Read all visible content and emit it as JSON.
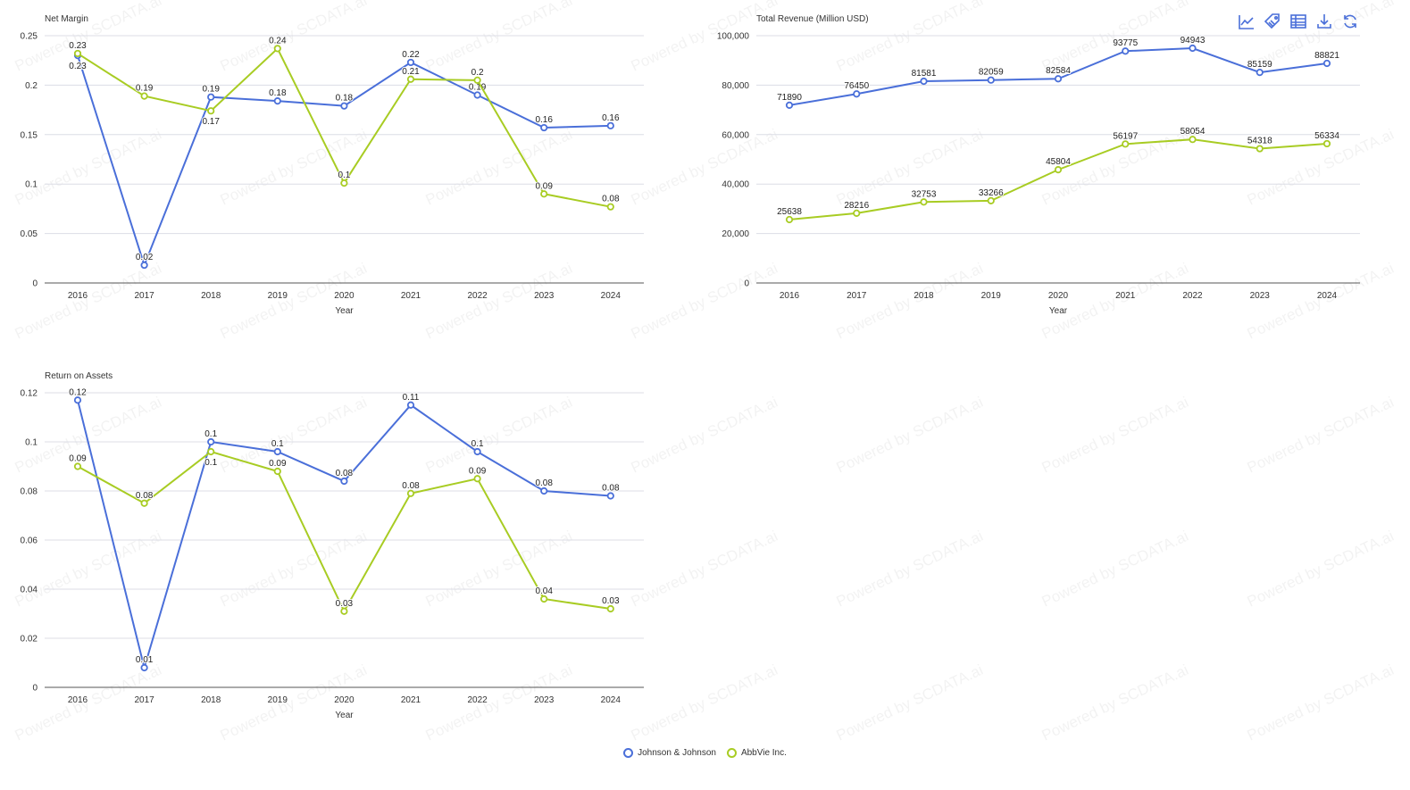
{
  "watermark": "Powered by SCDATA.ai",
  "toolbar": [
    "line-chart-icon",
    "tag-icon",
    "table-icon",
    "download-icon",
    "refresh-icon"
  ],
  "legend": [
    {
      "name": "Johnson & Johnson",
      "color": "#4a6fd9"
    },
    {
      "name": "AbbVie Inc.",
      "color": "#a8cc23"
    }
  ],
  "chart_data": [
    {
      "type": "line",
      "title": "Net Margin",
      "xlabel": "Year",
      "ylabel": "",
      "categories": [
        "2016",
        "2017",
        "2018",
        "2019",
        "2020",
        "2021",
        "2022",
        "2023",
        "2024"
      ],
      "ylim": [
        0,
        0.25
      ],
      "yticks": [
        0,
        0.05,
        0.1,
        0.15,
        0.2,
        0.25
      ],
      "ytick_labels": [
        "0",
        "0.05",
        "0.1",
        "0.15",
        "0.2",
        "0.25"
      ],
      "grid": true,
      "series": [
        {
          "name": "Johnson & Johnson",
          "color": "#4a6fd9",
          "values": [
            0.23,
            0.018,
            0.188,
            0.184,
            0.179,
            0.223,
            0.19,
            0.157,
            0.159
          ],
          "labels": [
            "0.23",
            "0.02",
            "0.19",
            "0.18",
            "0.18",
            "0.22",
            "0.19",
            "0.16",
            "0.16"
          ]
        },
        {
          "name": "AbbVie Inc.",
          "color": "#a8cc23",
          "values": [
            0.232,
            0.189,
            0.174,
            0.237,
            0.101,
            0.206,
            0.205,
            0.09,
            0.077
          ],
          "labels": [
            "0.23",
            "0.19",
            "0.17",
            "0.24",
            "0.1",
            "0.21",
            "0.2",
            "0.09",
            "0.08"
          ]
        }
      ]
    },
    {
      "type": "line",
      "title": "Total Revenue (Million USD)",
      "xlabel": "Year",
      "ylabel": "",
      "categories": [
        "2016",
        "2017",
        "2018",
        "2019",
        "2020",
        "2021",
        "2022",
        "2023",
        "2024"
      ],
      "ylim": [
        0,
        100000
      ],
      "yticks": [
        0,
        20000,
        40000,
        60000,
        80000,
        100000
      ],
      "ytick_labels": [
        "0",
        "20,000",
        "40,000",
        "60,000",
        "80,000",
        "100,000"
      ],
      "grid": true,
      "series": [
        {
          "name": "Johnson & Johnson",
          "color": "#4a6fd9",
          "values": [
            71890,
            76450,
            81581,
            82059,
            82584,
            93775,
            94943,
            85159,
            88821
          ],
          "labels": [
            "71890",
            "76450",
            "81581",
            "82059",
            "82584",
            "93775",
            "94943",
            "85159",
            "88821"
          ]
        },
        {
          "name": "AbbVie Inc.",
          "color": "#a8cc23",
          "values": [
            25638,
            28216,
            32753,
            33266,
            45804,
            56197,
            58054,
            54318,
            56334
          ],
          "labels": [
            "25638",
            "28216",
            "32753",
            "33266",
            "45804",
            "56197",
            "58054",
            "54318",
            "56334"
          ]
        }
      ]
    },
    {
      "type": "line",
      "title": "Return on Assets",
      "xlabel": "Year",
      "ylabel": "",
      "categories": [
        "2016",
        "2017",
        "2018",
        "2019",
        "2020",
        "2021",
        "2022",
        "2023",
        "2024"
      ],
      "ylim": [
        0,
        0.12
      ],
      "yticks": [
        0,
        0.02,
        0.04,
        0.06,
        0.08,
        0.1,
        0.12
      ],
      "ytick_labels": [
        "0",
        "0.02",
        "0.04",
        "0.06",
        "0.08",
        "0.1",
        "0.12"
      ],
      "grid": true,
      "series": [
        {
          "name": "Johnson & Johnson",
          "color": "#4a6fd9",
          "values": [
            0.117,
            0.008,
            0.1,
            0.096,
            0.084,
            0.115,
            0.096,
            0.08,
            0.078
          ],
          "labels": [
            "0.12",
            "0.01",
            "0.1",
            "0.1",
            "0.08",
            "0.11",
            "0.1",
            "0.08",
            "0.08"
          ]
        },
        {
          "name": "AbbVie Inc.",
          "color": "#a8cc23",
          "values": [
            0.09,
            0.075,
            0.096,
            0.088,
            0.031,
            0.079,
            0.085,
            0.036,
            0.032
          ],
          "labels": [
            "0.09",
            "0.08",
            "0.1",
            "0.09",
            "0.03",
            "0.08",
            "0.09",
            "0.04",
            "0.03"
          ]
        }
      ]
    }
  ]
}
